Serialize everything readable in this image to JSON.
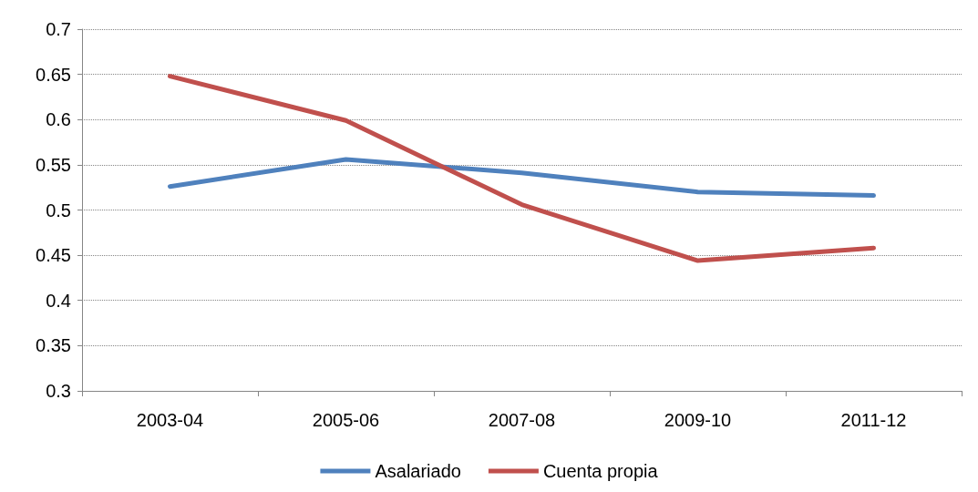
{
  "chart_data": {
    "type": "line",
    "categories": [
      "2003-04",
      "2005-06",
      "2007-08",
      "2009-10",
      "2011-12"
    ],
    "series": [
      {
        "name": "Asalariado",
        "color": "#4f81bd",
        "values": [
          0.526,
          0.556,
          0.541,
          0.52,
          0.516
        ]
      },
      {
        "name": "Cuenta propia",
        "color": "#c0504d",
        "values": [
          0.648,
          0.599,
          0.506,
          0.444,
          0.458
        ]
      }
    ],
    "ylim": [
      0.3,
      0.7
    ],
    "yticks": [
      0.3,
      0.35,
      0.4,
      0.45,
      0.5,
      0.55,
      0.6,
      0.65,
      0.7
    ],
    "grid": "y",
    "legend": "bottom",
    "marker": "none",
    "line_style": "solid"
  }
}
